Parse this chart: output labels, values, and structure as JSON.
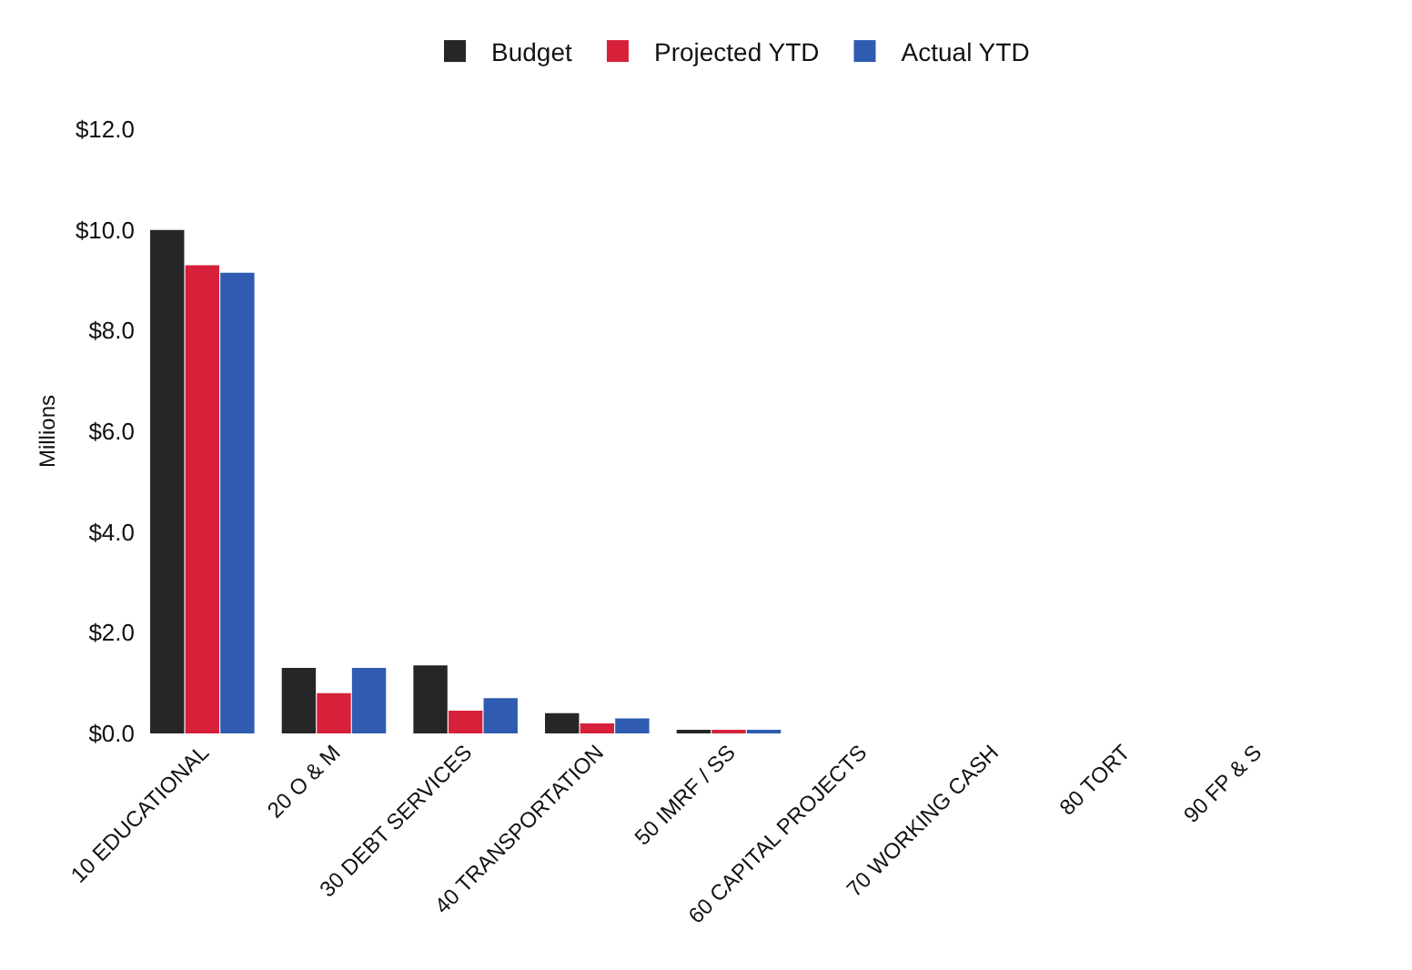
{
  "chart_data": {
    "type": "bar",
    "ylabel": "Millions",
    "categories": [
      "10 EDUCATIONAL",
      "20 O & M",
      "30 DEBT SERVICES",
      "40 TRANSPORTATION",
      "50 IMRF / SS",
      "60 CAPITAL PROJECTS",
      "70 WORKING CASH",
      "80 TORT",
      "90 FP & S"
    ],
    "series": [
      {
        "name": "Budget",
        "color": "#262626",
        "values": [
          10.0,
          1.3,
          1.35,
          0.4,
          0.07,
          0,
          0,
          0,
          0
        ]
      },
      {
        "name": "Projected YTD",
        "color": "#d7213b",
        "values": [
          9.3,
          0.8,
          0.45,
          0.2,
          0.05,
          0,
          0,
          0,
          0
        ]
      },
      {
        "name": "Actual YTD",
        "color": "#2f5cb0",
        "values": [
          9.15,
          1.3,
          0.7,
          0.3,
          0.07,
          0,
          0,
          0,
          0
        ]
      }
    ],
    "ylim": [
      0,
      12
    ],
    "yticks": [
      {
        "value": 0,
        "label": "$0.0"
      },
      {
        "value": 2,
        "label": "$2.0"
      },
      {
        "value": 4,
        "label": "$4.0"
      },
      {
        "value": 6,
        "label": "$6.0"
      },
      {
        "value": 8,
        "label": "$8.0"
      },
      {
        "value": 10,
        "label": "$10.0"
      },
      {
        "value": 12,
        "label": "$12.0"
      }
    ],
    "legend": "top",
    "grid": false
  }
}
